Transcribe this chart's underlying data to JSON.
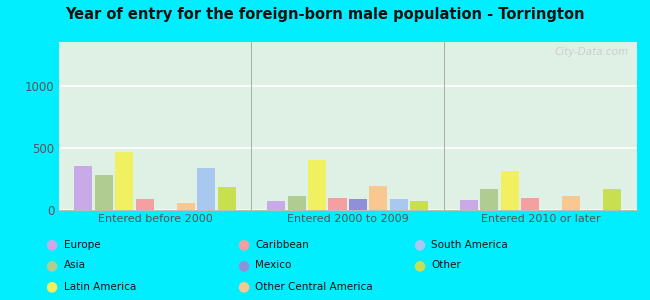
{
  "title": "Year of entry for the foreign-born male population - Torrington",
  "groups": [
    "Entered before 2000",
    "Entered 2000 to 2009",
    "Entered 2010 or later"
  ],
  "categories": [
    "Europe",
    "Asia",
    "Latin America",
    "Caribbean",
    "Mexico",
    "Other Central America",
    "South America",
    "Other"
  ],
  "colors": [
    "#c9a9e8",
    "#b0cc90",
    "#f0f060",
    "#f4a0a0",
    "#9090d8",
    "#f8c890",
    "#a8c8f0",
    "#c8e050"
  ],
  "values": {
    "Entered before 2000": [
      350,
      280,
      470,
      90,
      0,
      55,
      340,
      185
    ],
    "Entered 2000 to 2009": [
      70,
      110,
      400,
      100,
      85,
      195,
      85,
      75
    ],
    "Entered 2010 or later": [
      80,
      165,
      315,
      95,
      0,
      115,
      0,
      165
    ]
  },
  "ylim": [
    0,
    1350
  ],
  "yticks": [
    0,
    500,
    1000
  ],
  "plot_bg": "#dff0e4",
  "outer_bg": "#00eeff",
  "watermark": "City-Data.com",
  "legend": [
    [
      "Europe",
      "#c9a9e8"
    ],
    [
      "Caribbean",
      "#f4a0a0"
    ],
    [
      "South America",
      "#a8c8f0"
    ],
    [
      "Asia",
      "#b0cc90"
    ],
    [
      "Mexico",
      "#9090d8"
    ],
    [
      "Other",
      "#c8e050"
    ],
    [
      "Latin America",
      "#f0f060"
    ],
    [
      "Other Central America",
      "#f8c890"
    ]
  ]
}
